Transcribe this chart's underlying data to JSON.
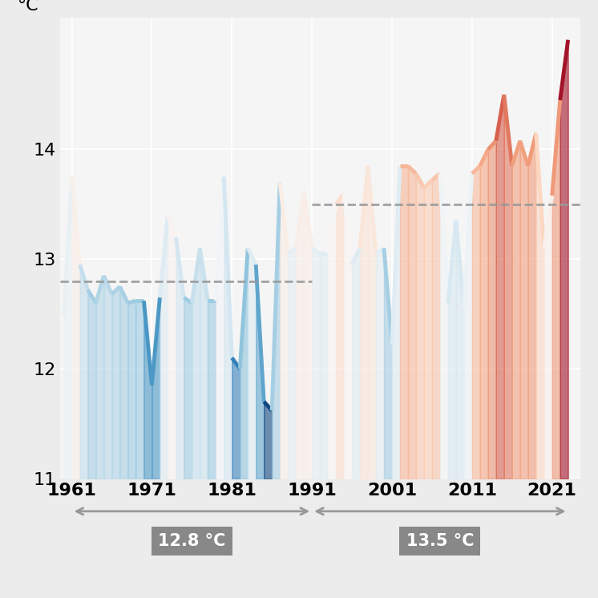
{
  "years": [
    1960,
    1961,
    1962,
    1963,
    1964,
    1965,
    1966,
    1967,
    1968,
    1969,
    1970,
    1971,
    1972,
    1973,
    1974,
    1975,
    1976,
    1977,
    1978,
    1979,
    1980,
    1981,
    1982,
    1983,
    1984,
    1985,
    1986,
    1987,
    1988,
    1989,
    1990,
    1991,
    1992,
    1993,
    1994,
    1995,
    1996,
    1997,
    1998,
    1999,
    2000,
    2001,
    2002,
    2003,
    2004,
    2005,
    2006,
    2007,
    2008,
    2009,
    2010,
    2011,
    2012,
    2013,
    2014,
    2015,
    2016,
    2017,
    2018,
    2019,
    2020,
    2021,
    2022,
    2023
  ],
  "temps": [
    12.48,
    13.75,
    12.95,
    12.72,
    12.6,
    12.85,
    12.68,
    12.75,
    12.6,
    12.62,
    12.62,
    11.85,
    12.65,
    13.4,
    13.2,
    12.65,
    12.6,
    13.1,
    12.62,
    12.62,
    13.75,
    12.1,
    12.0,
    13.1,
    12.95,
    11.7,
    11.62,
    13.7,
    13.05,
    13.1,
    13.62,
    13.1,
    13.05,
    13.05,
    13.5,
    13.6,
    12.95,
    13.1,
    13.85,
    13.05,
    13.1,
    12.22,
    13.85,
    13.85,
    13.78,
    13.65,
    13.72,
    13.78,
    12.6,
    13.35,
    12.55,
    13.78,
    13.85,
    14.0,
    14.08,
    14.5,
    13.85,
    14.08,
    13.85,
    14.15,
    13.1,
    13.58,
    14.45,
    15.0
  ],
  "mean1": 12.8,
  "mean2": 13.5,
  "ylim": [
    11.0,
    15.2
  ],
  "xlim": [
    1959.5,
    2024.5
  ],
  "yticks": [
    11,
    12,
    13,
    14
  ],
  "xticks": [
    1961,
    1971,
    1981,
    1991,
    2001,
    2011,
    2021
  ],
  "ylabel": "°C",
  "background_color": "#ececec",
  "plot_bg": "#f5f5f5",
  "grid_color": "#ffffff",
  "dashed_color": "#999999",
  "arrow_color": "#999999",
  "box_color": "#888888",
  "box_text_color": "#ffffff",
  "line_width": 3.5,
  "tick_fontsize": 16,
  "label_fontsize": 16,
  "vmin": 11.5,
  "vmax": 15.0
}
